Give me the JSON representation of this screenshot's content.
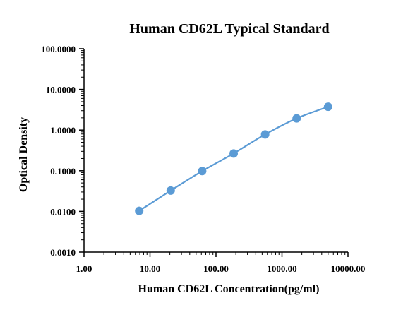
{
  "chart_data": {
    "type": "scatter",
    "title": "Human CD62L Typical Standard",
    "xlabel": "Human CD62L Concentration(pg/ml)",
    "ylabel": "Optical Density",
    "x_scale": "log",
    "y_scale": "log",
    "xlim": [
      1,
      10000
    ],
    "ylim": [
      0.001,
      100
    ],
    "x_ticks": [
      "1.00",
      "10.00",
      "100.00",
      "1000.00",
      "10000.00"
    ],
    "y_ticks": [
      "0.0010",
      "0.0100",
      "0.1000",
      "1.0000",
      "10.0000",
      "100.0000"
    ],
    "grid": false,
    "legend": "none",
    "series": [
      {
        "x": [
          6.86,
          20.58,
          61.73,
          185.19,
          555.56,
          1666.67,
          5000
        ],
        "y": [
          0.0103,
          0.0325,
          0.098,
          0.266,
          0.782,
          1.94,
          3.75
        ],
        "fit_curve": true
      }
    ],
    "colors": {
      "series": "#5b9bd5",
      "axis": "#000000"
    }
  }
}
